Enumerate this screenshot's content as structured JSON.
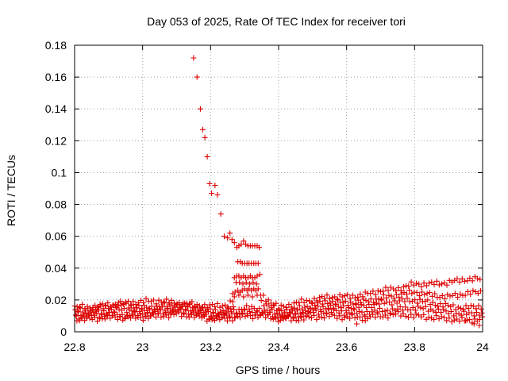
{
  "chart_data": {
    "type": "scatter",
    "title": "Day 053 of 2025, Rate Of TEC Index for receiver tori",
    "xlabel": "GPS time / hours",
    "ylabel": "ROTI / TECUs",
    "xlim": [
      22.8,
      24
    ],
    "ylim": [
      0,
      0.18
    ],
    "x_ticks": [
      "22.8",
      "23",
      "23.2",
      "23.4",
      "23.6",
      "23.8",
      "24"
    ],
    "y_ticks": [
      "0",
      "0.02",
      "0.04",
      "0.06",
      "0.08",
      "0.1",
      "0.12",
      "0.14",
      "0.16",
      "0.18"
    ],
    "grid": true,
    "legend": "none",
    "marker": "+",
    "marker_color": "#dd0000",
    "series": [
      {
        "points": [
          [
            23.15,
            0.172
          ],
          [
            23.16,
            0.16
          ],
          [
            23.17,
            0.14
          ],
          [
            23.177,
            0.127
          ],
          [
            23.183,
            0.122
          ],
          [
            23.19,
            0.11
          ],
          [
            23.197,
            0.093
          ],
          [
            23.203,
            0.087
          ],
          [
            23.213,
            0.092
          ],
          [
            23.22,
            0.086
          ],
          [
            23.23,
            0.074
          ],
          [
            23.24,
            0.06
          ],
          [
            23.25,
            0.059
          ],
          [
            23.257,
            0.062
          ],
          [
            23.263,
            0.058
          ],
          [
            23.27,
            0.056
          ],
          [
            23.277,
            0.053
          ],
          [
            23.283,
            0.054
          ],
          [
            23.29,
            0.055
          ],
          [
            23.297,
            0.057
          ],
          [
            23.303,
            0.055
          ],
          [
            23.31,
            0.054
          ],
          [
            23.317,
            0.054
          ],
          [
            23.323,
            0.054
          ],
          [
            23.33,
            0.054
          ],
          [
            23.337,
            0.054
          ],
          [
            23.343,
            0.053
          ],
          [
            23.28,
            0.044
          ],
          [
            23.287,
            0.044
          ],
          [
            23.293,
            0.043
          ],
          [
            23.3,
            0.043
          ],
          [
            23.307,
            0.043
          ],
          [
            23.313,
            0.043
          ],
          [
            23.32,
            0.043
          ],
          [
            23.327,
            0.043
          ],
          [
            23.333,
            0.043
          ],
          [
            23.34,
            0.043
          ],
          [
            23.27,
            0.034
          ],
          [
            23.277,
            0.035
          ],
          [
            23.283,
            0.035
          ],
          [
            23.29,
            0.034
          ],
          [
            23.297,
            0.035
          ],
          [
            23.303,
            0.034
          ],
          [
            23.31,
            0.034
          ],
          [
            23.317,
            0.035
          ],
          [
            23.323,
            0.034
          ],
          [
            23.33,
            0.034
          ],
          [
            23.337,
            0.035
          ],
          [
            23.345,
            0.036
          ],
          [
            23.275,
            0.031
          ],
          [
            23.285,
            0.031
          ],
          [
            23.295,
            0.03
          ],
          [
            23.305,
            0.031
          ],
          [
            23.315,
            0.03
          ],
          [
            23.325,
            0.031
          ],
          [
            23.335,
            0.03
          ],
          [
            23.265,
            0.024
          ],
          [
            23.272,
            0.025
          ],
          [
            23.28,
            0.026
          ],
          [
            23.287,
            0.025
          ],
          [
            23.293,
            0.026
          ],
          [
            23.3,
            0.027
          ],
          [
            23.307,
            0.026
          ],
          [
            23.313,
            0.027
          ],
          [
            23.32,
            0.026
          ],
          [
            23.327,
            0.027
          ],
          [
            23.333,
            0.026
          ],
          [
            23.34,
            0.027
          ],
          [
            23.27,
            0.022
          ],
          [
            23.283,
            0.023
          ],
          [
            23.297,
            0.022
          ],
          [
            23.31,
            0.023
          ],
          [
            23.323,
            0.022
          ],
          [
            23.337,
            0.023
          ],
          [
            23.63,
            0.005
          ],
          [
            23.655,
            0.007
          ],
          [
            23.95,
            0.007
          ],
          [
            23.975,
            0.005
          ],
          [
            23.99,
            0.004
          ]
        ]
      }
    ],
    "bands": [
      {
        "x": [
          22.8,
          22.85,
          22.9,
          22.95,
          23.0,
          23.05,
          23.1,
          23.15,
          23.2,
          23.25,
          23.3,
          23.35,
          23.4,
          23.45,
          23.5,
          23.55,
          23.6,
          23.65,
          23.7,
          23.75,
          23.8,
          23.85,
          23.9,
          23.95,
          24.0
        ],
        "y": [
          0.0155,
          0.0155,
          0.017,
          0.018,
          0.019,
          0.0195,
          0.018,
          0.017,
          0.016,
          0.017,
          0.024,
          0.023,
          0.015,
          0.018,
          0.02,
          0.022,
          0.022,
          0.023,
          0.026,
          0.027,
          0.03,
          0.03,
          0.031,
          0.033,
          0.033
        ]
      },
      {
        "x": [
          22.8,
          22.85,
          22.9,
          22.95,
          23.0,
          23.05,
          23.1,
          23.15,
          23.2,
          23.25,
          23.3,
          23.35,
          23.4,
          23.45,
          23.5,
          23.55,
          23.6,
          23.65,
          23.7,
          23.75,
          23.8,
          23.85,
          23.9,
          23.95,
          24.0
        ],
        "y": [
          0.013,
          0.014,
          0.016,
          0.017,
          0.015,
          0.016,
          0.017,
          0.016,
          0.013,
          0.013,
          0.02,
          0.019,
          0.013,
          0.014,
          0.017,
          0.019,
          0.018,
          0.019,
          0.021,
          0.023,
          0.025,
          0.023,
          0.022,
          0.024,
          0.025
        ]
      },
      {
        "x": [
          22.8,
          22.85,
          22.9,
          22.95,
          23.0,
          23.05,
          23.1,
          23.15,
          23.2,
          23.25,
          23.3,
          23.35,
          23.4,
          23.45,
          23.5,
          23.55,
          23.6,
          23.65,
          23.7,
          23.75,
          23.8,
          23.85,
          23.9,
          23.95,
          24.0
        ],
        "y": [
          0.011,
          0.012,
          0.013,
          0.014,
          0.013,
          0.014,
          0.015,
          0.014,
          0.011,
          0.012,
          0.015,
          0.014,
          0.011,
          0.012,
          0.014,
          0.016,
          0.015,
          0.016,
          0.018,
          0.019,
          0.02,
          0.018,
          0.016,
          0.015,
          0.016
        ]
      },
      {
        "x": [
          22.8,
          22.85,
          22.9,
          22.95,
          23.0,
          23.05,
          23.1,
          23.15,
          23.2,
          23.25,
          23.3,
          23.35,
          23.4,
          23.45,
          23.5,
          23.55,
          23.6,
          23.65,
          23.7,
          23.75,
          23.8,
          23.85,
          23.9,
          23.95,
          24.0
        ],
        "y": [
          0.009,
          0.01,
          0.011,
          0.01,
          0.011,
          0.012,
          0.013,
          0.012,
          0.009,
          0.01,
          0.012,
          0.012,
          0.009,
          0.01,
          0.012,
          0.013,
          0.012,
          0.012,
          0.013,
          0.014,
          0.015,
          0.014,
          0.012,
          0.011,
          0.012
        ]
      },
      {
        "x": [
          22.8,
          22.85,
          22.9,
          22.95,
          23.0,
          23.05,
          23.1,
          23.15,
          23.2,
          23.25,
          23.3,
          23.35,
          23.4,
          23.45,
          23.5,
          23.55,
          23.6,
          23.65,
          23.7,
          23.75,
          23.8,
          23.85,
          23.9,
          23.95,
          24.0
        ],
        "y": [
          0.008,
          0.008,
          0.009,
          0.009,
          0.009,
          0.01,
          0.011,
          0.01,
          0.008,
          0.008,
          0.01,
          0.01,
          0.008,
          0.008,
          0.009,
          0.01,
          0.009,
          0.009,
          0.01,
          0.011,
          0.01,
          0.009,
          0.008,
          0.007,
          0.008
        ]
      }
    ]
  }
}
